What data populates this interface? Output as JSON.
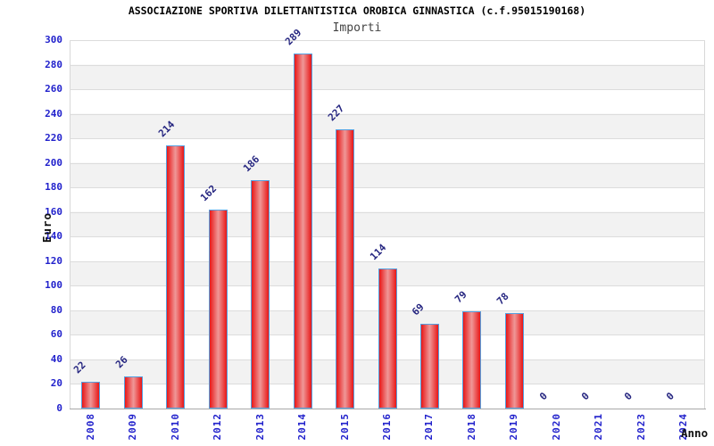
{
  "chart_data": {
    "type": "bar",
    "title": "ASSOCIAZIONE SPORTIVA DILETTANTISTICA OROBICA GINNASTICA (c.f.95015190168)",
    "subtitle": "Importi",
    "xlabel": "Anno",
    "ylabel": "Euro",
    "categories": [
      "2008",
      "2009",
      "2010",
      "2012",
      "2013",
      "2014",
      "2015",
      "2016",
      "2017",
      "2018",
      "2019",
      "2020",
      "2021",
      "2023",
      "2024"
    ],
    "values": [
      22,
      26,
      214,
      162,
      186,
      289,
      227,
      114,
      69,
      79,
      78,
      0,
      0,
      0,
      0
    ],
    "ylim": [
      0,
      300
    ],
    "ytick_step": 20,
    "yticks": [
      0,
      20,
      40,
      60,
      80,
      100,
      120,
      140,
      160,
      180,
      200,
      220,
      240,
      260,
      280,
      300
    ],
    "grid": "horizontal-bands-alternating",
    "legend": "none",
    "value_labels": "rotated-45-above-bars",
    "colors": {
      "bar_fill_edge": "#e81717",
      "bar_fill_center": "#ef9898",
      "bar_border": "#55a0e0",
      "axis_tick_text": "#2222cc",
      "value_label_text": "#252580",
      "band_gray": "#f2f2f2",
      "band_white": "#ffffff",
      "title_text": "#000000",
      "subtitle_text": "#444444"
    }
  }
}
